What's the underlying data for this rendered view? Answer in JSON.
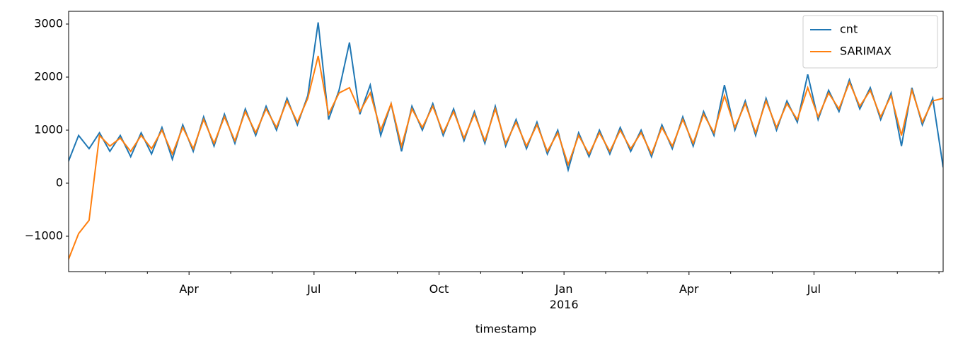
{
  "chart_data": {
    "type": "line",
    "x_label": "timestamp",
    "x": [
      0.1,
      0.35,
      0.6,
      0.85,
      1.1,
      1.35,
      1.6,
      1.85,
      2.1,
      2.35,
      2.6,
      2.85,
      3.1,
      3.35,
      3.6,
      3.85,
      4.1,
      4.35,
      4.6,
      4.85,
      5.1,
      5.35,
      5.6,
      5.85,
      6.1,
      6.35,
      6.6,
      6.85,
      7.1,
      7.35,
      7.6,
      7.85,
      8.1,
      8.35,
      8.6,
      8.85,
      9.1,
      9.35,
      9.6,
      9.85,
      10.1,
      10.35,
      10.6,
      10.85,
      11.1,
      11.35,
      11.6,
      11.85,
      12.1,
      12.35,
      12.6,
      12.85,
      13.1,
      13.35,
      13.6,
      13.85,
      14.1,
      14.35,
      14.6,
      14.85,
      15.1,
      15.35,
      15.6,
      15.85,
      16.1,
      16.35,
      16.6,
      16.85,
      17.1,
      17.35,
      17.6,
      17.85,
      18.1,
      18.35,
      18.6,
      18.85,
      19.1,
      19.35,
      19.6,
      19.85,
      20.1,
      20.35,
      20.6,
      20.85,
      21.1
    ],
    "series": [
      {
        "name": "cnt",
        "color": "#1f77b4",
        "values": [
          400,
          900,
          650,
          950,
          600,
          900,
          500,
          950,
          550,
          1050,
          450,
          1100,
          600,
          1250,
          700,
          1300,
          750,
          1400,
          900,
          1450,
          1000,
          1600,
          1100,
          1650,
          3030,
          1200,
          1750,
          2650,
          1300,
          1850,
          900,
          1500,
          600,
          1450,
          1000,
          1500,
          900,
          1400,
          800,
          1350,
          750,
          1450,
          700,
          1200,
          650,
          1150,
          550,
          1000,
          250,
          950,
          500,
          1000,
          550,
          1050,
          600,
          1000,
          500,
          1100,
          650,
          1250,
          700,
          1350,
          900,
          1850,
          1000,
          1550,
          900,
          1600,
          1000,
          1550,
          1150,
          2050,
          1200,
          1750,
          1350,
          1950,
          1400,
          1800,
          1200,
          1700,
          700,
          1800,
          1100,
          1600,
          300
        ]
      },
      {
        "name": "SARIMAX",
        "color": "#ff7f0e",
        "values": [
          -1450,
          -950,
          -700,
          900,
          700,
          850,
          600,
          900,
          650,
          1000,
          550,
          1050,
          650,
          1200,
          750,
          1250,
          800,
          1350,
          950,
          1400,
          1050,
          1550,
          1150,
          1600,
          2400,
          1300,
          1700,
          1800,
          1350,
          1700,
          1000,
          1500,
          700,
          1400,
          1050,
          1450,
          950,
          1350,
          850,
          1300,
          800,
          1400,
          750,
          1150,
          700,
          1100,
          600,
          950,
          350,
          900,
          550,
          950,
          600,
          1000,
          650,
          950,
          550,
          1050,
          700,
          1200,
          750,
          1300,
          950,
          1650,
          1050,
          1500,
          950,
          1550,
          1050,
          1500,
          1200,
          1800,
          1250,
          1700,
          1400,
          1900,
          1450,
          1750,
          1250,
          1650,
          900,
          1750,
          1150,
          1550,
          1600
        ]
      }
    ],
    "xlim": [
      0.11,
      21.1
    ],
    "xticks": [
      {
        "value": 3,
        "label": "Apr"
      },
      {
        "value": 6,
        "label": "Jul"
      },
      {
        "value": 9,
        "label": "Oct"
      },
      {
        "value": 12,
        "label": "Jan\n2016"
      },
      {
        "value": 15,
        "label": "Apr"
      },
      {
        "value": 18,
        "label": "Jul"
      }
    ],
    "xminorticks": [
      1,
      2,
      4,
      5,
      7,
      8,
      10,
      11,
      13,
      14,
      16,
      17,
      19,
      20,
      21
    ],
    "ylim": [
      -1667,
      3240
    ],
    "yticks": [
      {
        "value": -1000,
        "label": "−1000"
      },
      0,
      1000,
      2000,
      3000
    ],
    "legend": "upper right"
  }
}
